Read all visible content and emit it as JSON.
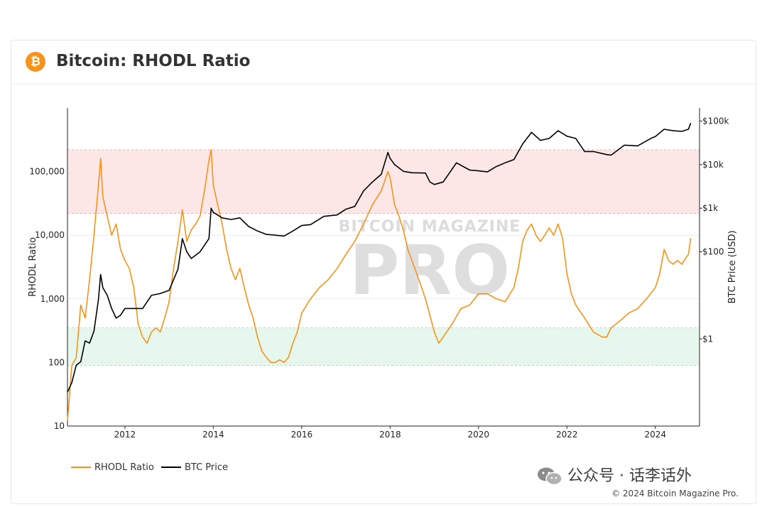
{
  "header": {
    "title": "Bitcoin: RHODL Ratio",
    "logo_glyph": "₿",
    "logo_color": "#f7931a"
  },
  "watermark": {
    "top": "BITCOIN MAGAZINE",
    "main": "PRO"
  },
  "social": {
    "text": "公众号 · 话李话外"
  },
  "footer": {
    "copyright": "© 2024 Bitcoin Magazine Pro."
  },
  "colors": {
    "rhodl": "#f7931a",
    "price": "#000000",
    "red_band": "#fde6e6",
    "green_band": "#e6f8ee"
  },
  "chart_data": {
    "type": "line",
    "title": "Bitcoin: RHODL Ratio",
    "ylabel": "RHODL Ratio",
    "y2label": "BTC Price (USD)",
    "x_ticks": [
      "2012",
      "2014",
      "2016",
      "2018",
      "2020",
      "2022",
      "2024"
    ],
    "xlim": [
      2010.7,
      2025.0
    ],
    "ylim": [
      10,
      1000000
    ],
    "y_scale": "log",
    "y_ticks": [
      10,
      100,
      1000,
      10000,
      100000
    ],
    "y_tick_labels": [
      "10",
      "100",
      "1,000",
      "10,000",
      "100,000"
    ],
    "y2_scale": "log",
    "y2_ticks": [
      1,
      100,
      1000,
      10000,
      100000
    ],
    "y2_tick_labels": [
      "$1",
      "$100",
      "$1k",
      "$10k",
      "$100k"
    ],
    "y2lim": [
      0.01,
      200000
    ],
    "bands": [
      {
        "name": "top",
        "from": 22000,
        "to": 220000,
        "color": "#fde6e6"
      },
      {
        "name": "bottom",
        "from": 90,
        "to": 350,
        "color": "#e6f8ee"
      }
    ],
    "legend": {
      "placement": "bottom-left"
    },
    "grid": true,
    "series": [
      {
        "name": "RHODL Ratio",
        "color": "#f7931a",
        "axis": "left",
        "x": [
          2010.7,
          2010.8,
          2010.9,
          2011.0,
          2011.1,
          2011.2,
          2011.3,
          2011.4,
          2011.45,
          2011.5,
          2011.6,
          2011.7,
          2011.8,
          2011.9,
          2012.0,
          2012.1,
          2012.2,
          2012.3,
          2012.4,
          2012.5,
          2012.6,
          2012.7,
          2012.8,
          2012.9,
          2013.0,
          2013.1,
          2013.2,
          2013.3,
          2013.4,
          2013.5,
          2013.6,
          2013.7,
          2013.8,
          2013.9,
          2013.95,
          2014.0,
          2014.1,
          2014.2,
          2014.3,
          2014.4,
          2014.5,
          2014.6,
          2014.7,
          2014.8,
          2014.9,
          2015.0,
          2015.1,
          2015.2,
          2015.3,
          2015.4,
          2015.5,
          2015.6,
          2015.7,
          2015.8,
          2015.9,
          2016.0,
          2016.2,
          2016.4,
          2016.6,
          2016.8,
          2017.0,
          2017.2,
          2017.4,
          2017.6,
          2017.8,
          2017.95,
          2018.0,
          2018.1,
          2018.2,
          2018.3,
          2018.4,
          2018.6,
          2018.8,
          2019.0,
          2019.1,
          2019.2,
          2019.4,
          2019.6,
          2019.8,
          2020.0,
          2020.2,
          2020.4,
          2020.6,
          2020.8,
          2020.9,
          2021.0,
          2021.1,
          2021.2,
          2021.3,
          2021.4,
          2021.5,
          2021.6,
          2021.7,
          2021.8,
          2021.9,
          2022.0,
          2022.1,
          2022.2,
          2022.4,
          2022.6,
          2022.8,
          2022.9,
          2023.0,
          2023.2,
          2023.4,
          2023.6,
          2023.8,
          2024.0,
          2024.1,
          2024.2,
          2024.3,
          2024.4,
          2024.5,
          2024.6,
          2024.7,
          2024.75,
          2024.8
        ],
        "y": [
          12,
          90,
          120,
          800,
          500,
          2000,
          10000,
          60000,
          160000,
          40000,
          20000,
          10000,
          15000,
          6000,
          4000,
          3000,
          1500,
          400,
          250,
          200,
          300,
          350,
          300,
          500,
          900,
          3000,
          8000,
          25000,
          8000,
          12000,
          15000,
          20000,
          50000,
          150000,
          220000,
          60000,
          30000,
          15000,
          6000,
          3000,
          2000,
          3000,
          1500,
          800,
          500,
          250,
          150,
          120,
          100,
          100,
          110,
          100,
          120,
          200,
          300,
          600,
          1000,
          1500,
          2000,
          3000,
          5000,
          8000,
          15000,
          30000,
          50000,
          100000,
          80000,
          30000,
          20000,
          12000,
          6000,
          2500,
          1000,
          300,
          200,
          250,
          400,
          700,
          800,
          1200,
          1200,
          1000,
          900,
          1500,
          3000,
          8000,
          12000,
          15000,
          10000,
          8000,
          10000,
          13000,
          10000,
          15000,
          9000,
          2500,
          1200,
          800,
          500,
          300,
          250,
          250,
          350,
          450,
          600,
          700,
          1000,
          1500,
          2500,
          6000,
          4000,
          3500,
          4000,
          3500,
          4500,
          5000,
          9000
        ]
      },
      {
        "name": "BTC Price",
        "color": "#000000",
        "axis": "right",
        "x": [
          2010.7,
          2010.8,
          2010.9,
          2011.0,
          2011.1,
          2011.2,
          2011.3,
          2011.4,
          2011.45,
          2011.5,
          2011.6,
          2011.7,
          2011.8,
          2011.9,
          2012.0,
          2012.2,
          2012.4,
          2012.6,
          2012.8,
          2013.0,
          2013.2,
          2013.3,
          2013.4,
          2013.5,
          2013.7,
          2013.9,
          2013.95,
          2014.0,
          2014.2,
          2014.4,
          2014.6,
          2014.8,
          2015.0,
          2015.2,
          2015.4,
          2015.6,
          2015.8,
          2016.0,
          2016.2,
          2016.5,
          2016.8,
          2017.0,
          2017.2,
          2017.4,
          2017.6,
          2017.8,
          2017.95,
          2018.0,
          2018.1,
          2018.3,
          2018.5,
          2018.8,
          2018.9,
          2019.0,
          2019.2,
          2019.5,
          2019.8,
          2020.0,
          2020.2,
          2020.4,
          2020.6,
          2020.8,
          2021.0,
          2021.2,
          2021.4,
          2021.6,
          2021.8,
          2022.0,
          2022.2,
          2022.4,
          2022.6,
          2022.9,
          2023.0,
          2023.3,
          2023.6,
          2023.9,
          2024.0,
          2024.2,
          2024.4,
          2024.6,
          2024.75,
          2024.8
        ],
        "y": [
          0.06,
          0.1,
          0.25,
          0.3,
          0.9,
          0.8,
          1.5,
          8,
          30,
          15,
          10,
          5,
          3,
          3.5,
          5,
          5,
          5,
          10,
          11,
          13,
          40,
          200,
          100,
          70,
          100,
          200,
          1000,
          800,
          600,
          550,
          600,
          380,
          300,
          250,
          240,
          230,
          300,
          400,
          420,
          650,
          700,
          950,
          1100,
          2500,
          4000,
          6000,
          19000,
          14000,
          10000,
          7000,
          6500,
          6400,
          4000,
          3500,
          4000,
          11000,
          7500,
          7200,
          6800,
          9000,
          11000,
          13000,
          30000,
          55000,
          36000,
          40000,
          60000,
          45000,
          40000,
          20000,
          20000,
          17000,
          16500,
          28000,
          27000,
          40000,
          44000,
          65000,
          60000,
          58000,
          65000,
          90000
        ]
      }
    ]
  }
}
